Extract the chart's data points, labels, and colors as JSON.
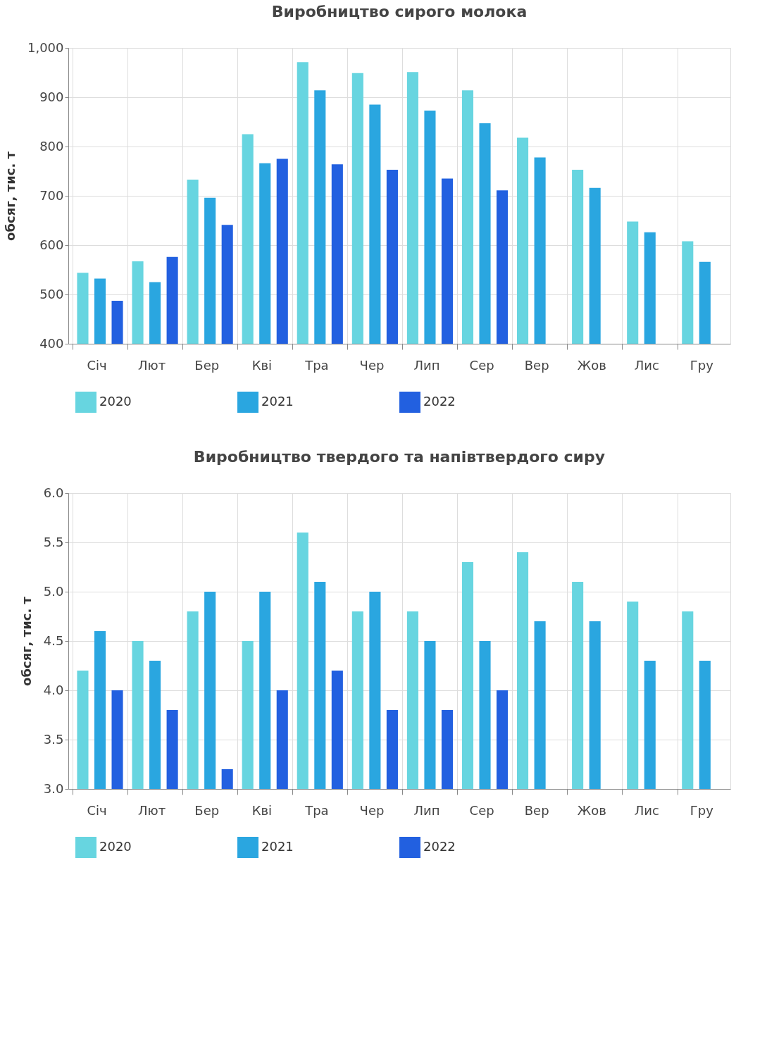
{
  "chart_data": [
    {
      "type": "bar",
      "title": "Виробництво сирого молока",
      "ylabel": "обсяг, тис. т",
      "categories": [
        "Січ",
        "Лют",
        "Бер",
        "Кві",
        "Тра",
        "Чер",
        "Лип",
        "Сер",
        "Вер",
        "Жов",
        "Лис",
        "Гру"
      ],
      "series": [
        {
          "name": "2020",
          "color": "#67d5e0",
          "values": [
            544,
            567,
            733,
            825,
            971,
            949,
            951,
            914,
            818,
            753,
            648,
            608
          ]
        },
        {
          "name": "2021",
          "color": "#2aa6e0",
          "values": [
            532,
            525,
            696,
            766,
            914,
            885,
            873,
            847,
            778,
            716,
            626,
            566
          ]
        },
        {
          "name": "2022",
          "color": "#2260e0",
          "values": [
            487,
            576,
            641,
            775,
            764,
            753,
            735,
            711,
            null,
            null,
            null,
            null
          ]
        }
      ],
      "ylim": [
        400,
        1000
      ],
      "yticks": [
        400,
        500,
        600,
        700,
        800,
        900,
        {
          "value": 1000,
          "label": "1,000"
        }
      ],
      "grid": true,
      "legend": "bottom"
    },
    {
      "type": "bar",
      "title": "Виробництво твердого та напівтвердого сиру",
      "ylabel": "обсяг, тис. т",
      "categories": [
        "Січ",
        "Лют",
        "Бер",
        "Кві",
        "Тра",
        "Чер",
        "Лип",
        "Сер",
        "Вер",
        "Жов",
        "Лис",
        "Гру"
      ],
      "series": [
        {
          "name": "2020",
          "color": "#67d5e0",
          "values": [
            4.2,
            4.5,
            4.8,
            4.5,
            5.6,
            4.8,
            4.8,
            5.3,
            5.4,
            5.1,
            4.9,
            4.8
          ]
        },
        {
          "name": "2021",
          "color": "#2aa6e0",
          "values": [
            4.6,
            4.3,
            5.0,
            5.0,
            5.1,
            5.0,
            4.5,
            4.5,
            4.7,
            4.7,
            4.3,
            4.3
          ]
        },
        {
          "name": "2022",
          "color": "#2260e0",
          "values": [
            4.0,
            3.8,
            3.2,
            4.0,
            4.2,
            3.8,
            3.8,
            4.0,
            null,
            null,
            null,
            null
          ]
        }
      ],
      "ylim": [
        3.0,
        6.0
      ],
      "yticks": [
        {
          "value": 3,
          "label": "3.0"
        },
        3.5,
        {
          "value": 4,
          "label": "4.0"
        },
        4.5,
        {
          "value": 5,
          "label": "5.0"
        },
        5.5,
        {
          "value": 6,
          "label": "6.0"
        }
      ],
      "grid": true,
      "legend": "bottom"
    }
  ]
}
